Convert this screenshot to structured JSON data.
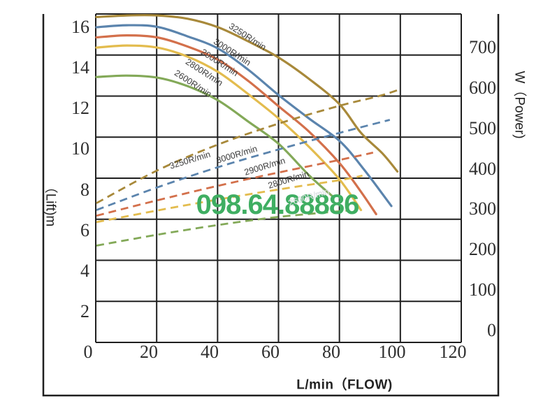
{
  "page": {
    "background": "#ffffff",
    "description": "Pump performance curve chart: lift and power vs flow for five rotation speeds"
  },
  "watermark": {
    "text": "098.64.88886",
    "color": "#3fae62"
  },
  "chart_data": {
    "type": "line",
    "title": "",
    "x_label": "L/min（FLOW)",
    "y_left_label": "（Lift)m",
    "y_right_label": "W（Power)",
    "x_ticks": [
      0,
      20,
      40,
      60,
      80,
      100,
      120
    ],
    "y_left_ticks": [
      16,
      14,
      12,
      10,
      8,
      6,
      4,
      2
    ],
    "y_right_ticks": [
      700,
      600,
      500,
      400,
      300,
      200,
      100,
      0
    ],
    "x_range": [
      0,
      120
    ],
    "y_left_unit": "m",
    "y_right_unit": "W",
    "grid": "on",
    "legend_position": "labels-on-curves",
    "head_curves": [
      {
        "rpm": "3250R/min",
        "color": "#a8893a",
        "style": "solid",
        "points": [
          [
            0,
            16.5
          ],
          [
            10,
            16.58
          ],
          [
            20,
            16.58
          ],
          [
            30,
            16.42
          ],
          [
            40,
            16.0
          ],
          [
            50,
            15.3
          ],
          [
            60,
            14.5
          ],
          [
            70,
            13.45
          ],
          [
            80,
            12.2
          ],
          [
            87,
            10.8
          ],
          [
            94,
            9.8
          ],
          [
            99,
            8.9
          ]
        ]
      },
      {
        "rpm": "3000R/min",
        "color": "#5b84ad",
        "style": "solid",
        "points": [
          [
            0,
            16.0
          ],
          [
            10,
            16.1
          ],
          [
            20,
            16.02
          ],
          [
            30,
            15.55
          ],
          [
            40,
            14.95
          ],
          [
            50,
            13.9
          ],
          [
            60,
            12.65
          ],
          [
            70,
            11.5
          ],
          [
            80,
            10.4
          ],
          [
            88,
            9.0
          ],
          [
            97,
            7.2
          ]
        ]
      },
      {
        "rpm": "2900R/min",
        "color": "#d3704b",
        "style": "solid",
        "points": [
          [
            0,
            15.5
          ],
          [
            10,
            15.6
          ],
          [
            20,
            15.5
          ],
          [
            30,
            15.05
          ],
          [
            40,
            14.4
          ],
          [
            50,
            13.35
          ],
          [
            60,
            12.1
          ],
          [
            70,
            10.85
          ],
          [
            80,
            9.3
          ],
          [
            87,
            7.9
          ],
          [
            92,
            6.8
          ]
        ]
      },
      {
        "rpm": "2800R/min",
        "color": "#e3bc4e",
        "style": "solid",
        "points": [
          [
            0,
            15.0
          ],
          [
            10,
            15.1
          ],
          [
            20,
            15.0
          ],
          [
            30,
            14.55
          ],
          [
            40,
            13.8
          ],
          [
            50,
            12.7
          ],
          [
            60,
            11.5
          ],
          [
            70,
            10.1
          ],
          [
            80,
            8.5
          ],
          [
            87,
            7.0
          ]
        ]
      },
      {
        "rpm": "2600R/min",
        "color": "#83a958",
        "style": "solid",
        "points": [
          [
            0,
            13.55
          ],
          [
            10,
            13.62
          ],
          [
            20,
            13.52
          ],
          [
            30,
            13.1
          ],
          [
            40,
            12.4
          ],
          [
            50,
            11.35
          ],
          [
            60,
            10.25
          ],
          [
            70,
            8.7
          ],
          [
            77.5,
            7.7
          ]
        ]
      }
    ],
    "power_curves": [
      {
        "rpm": "3250R/min",
        "color": "#a8893a",
        "style": "dashed",
        "points": [
          [
            0,
            315
          ],
          [
            20,
            396
          ],
          [
            40,
            460
          ],
          [
            60,
            512
          ],
          [
            80,
            556
          ],
          [
            93,
            580
          ],
          [
            100,
            597
          ]
        ]
      },
      {
        "rpm": "3000R/min",
        "color": "#5b84ad",
        "style": "dashed",
        "points": [
          [
            0,
            298
          ],
          [
            20,
            354
          ],
          [
            40,
            404
          ],
          [
            60,
            448
          ],
          [
            80,
            489
          ],
          [
            96.5,
            521
          ]
        ]
      },
      {
        "rpm": "2900R/min",
        "color": "#d3704b",
        "style": "dashed",
        "points": [
          [
            0,
            284
          ],
          [
            20,
            322
          ],
          [
            40,
            358
          ],
          [
            60,
            391
          ],
          [
            80,
            422
          ],
          [
            91,
            440
          ]
        ]
      },
      {
        "rpm": "2800R/min",
        "color": "#e3bc4e",
        "style": "dashed",
        "points": [
          [
            0,
            268
          ],
          [
            20,
            297
          ],
          [
            40,
            324
          ],
          [
            60,
            349
          ],
          [
            80,
            372
          ],
          [
            87.5,
            383
          ]
        ]
      },
      {
        "rpm": "2600R/min",
        "color": "#83a958",
        "style": "dashed",
        "faint_label": true,
        "points": [
          [
            0,
            210
          ],
          [
            20,
            237
          ],
          [
            40,
            261
          ],
          [
            60,
            281
          ],
          [
            83,
            297
          ]
        ]
      }
    ]
  }
}
